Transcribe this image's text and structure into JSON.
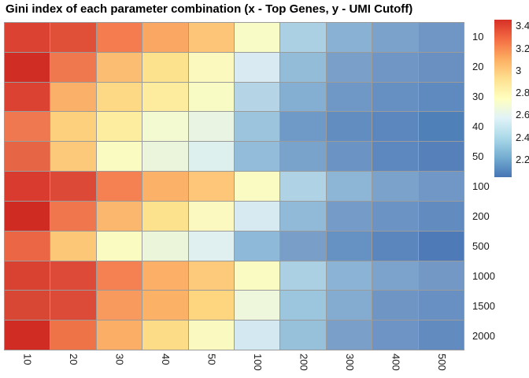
{
  "title": "Gini index of each parameter combination (x - Top Genes, y - UMI Cutoff)",
  "chart_data": {
    "type": "heatmap",
    "x_axis": {
      "name": "Top Genes",
      "categories": [
        "10",
        "20",
        "30",
        "40",
        "50",
        "100",
        "200",
        "300",
        "400",
        "500"
      ]
    },
    "y_axis": {
      "name": "UMI Cutoff",
      "categories": [
        "10",
        "20",
        "30",
        "40",
        "50",
        "100",
        "200",
        "500",
        "1000",
        "1500",
        "2000"
      ]
    },
    "colorbar": {
      "tick_labels": [
        "3.4",
        "3.2",
        "3",
        "2.8",
        "2.6",
        "2.4",
        "2.2"
      ],
      "tick_values": [
        3.4,
        3.2,
        3.0,
        2.8,
        2.6,
        2.4,
        2.2
      ],
      "max_value": 3.455,
      "min_value": 2.04,
      "gradient_colors": [
        "#d73027",
        "#f46d43",
        "#fdae61",
        "#fee090",
        "#ffffbf",
        "#e0f3f8",
        "#abd9e9",
        "#74add1",
        "#4575b4"
      ]
    },
    "grid_line_color": "#9b9b9b",
    "background": "#ffffff",
    "values_note": "Gini index per cell, estimated from cell color against the colorbar",
    "values": [
      [
        3.44,
        3.4,
        3.26,
        3.14,
        3.06,
        2.74,
        2.4,
        2.26,
        2.18,
        2.15
      ],
      [
        3.47,
        3.25,
        3.02,
        2.93,
        2.76,
        2.54,
        2.31,
        2.18,
        2.16,
        2.14
      ],
      [
        3.43,
        3.04,
        2.96,
        2.89,
        2.75,
        2.44,
        2.3,
        2.17,
        2.14,
        2.12
      ],
      [
        3.23,
        2.97,
        2.87,
        2.72,
        2.64,
        2.34,
        2.17,
        2.13,
        2.11,
        2.07
      ],
      [
        3.32,
        2.99,
        2.74,
        2.65,
        2.59,
        2.31,
        2.18,
        2.15,
        2.11,
        2.09
      ],
      [
        3.44,
        3.41,
        3.25,
        3.08,
        3.02,
        2.74,
        2.42,
        2.32,
        2.22,
        2.18
      ],
      [
        3.46,
        3.24,
        3.05,
        2.93,
        2.75,
        2.53,
        2.3,
        2.17,
        2.15,
        2.13
      ],
      [
        3.28,
        2.99,
        2.74,
        2.64,
        2.58,
        2.3,
        2.16,
        2.13,
        2.09,
        2.05
      ],
      [
        3.43,
        3.4,
        3.25,
        3.1,
        3.0,
        2.74,
        2.41,
        2.31,
        2.22,
        2.19
      ],
      [
        3.43,
        3.39,
        3.18,
        3.08,
        2.98,
        2.7,
        2.38,
        2.27,
        2.16,
        2.15
      ],
      [
        3.46,
        3.27,
        3.09,
        2.97,
        2.75,
        2.52,
        2.31,
        2.17,
        2.14,
        2.12
      ]
    ],
    "cell_colors": [
      [
        "#db4232",
        "#e05038",
        "#f47c4e",
        "#faa763",
        "#fdc577",
        "#f9fbc6",
        "#abd0e3",
        "#88b1d4",
        "#7aa2ca",
        "#6f96c5"
      ],
      [
        "#d02d24",
        "#f0784f",
        "#fbbd72",
        "#fde28e",
        "#fcf9bf",
        "#d9eaf2",
        "#93bcd9",
        "#7aa0c9",
        "#6f96c5",
        "#6a90c2"
      ],
      [
        "#dc4232",
        "#fbb069",
        "#fdd985",
        "#fdeb9e",
        "#f9fbc4",
        "#b5d5e7",
        "#85aed3",
        "#6f98c7",
        "#6690c2",
        "#5f8abf"
      ],
      [
        "#f07850",
        "#fdd07d",
        "#fdee9f",
        "#f3f9d0",
        "#e9f5e2",
        "#9cc4dd",
        "#6f9ac8",
        "#628dc1",
        "#5c87be",
        "#5080b8"
      ],
      [
        "#e66545",
        "#fcc97a",
        "#fafbc0",
        "#eaf5dc",
        "#def0ee",
        "#92bcd9",
        "#7aa3cb",
        "#6b94c5",
        "#5d88bf",
        "#5580ba"
      ],
      [
        "#d93c2e",
        "#dc4937",
        "#f58052",
        "#fbb168",
        "#fdc679",
        "#f9fbc2",
        "#b0d2e5",
        "#8cb5d6",
        "#7aa2ca",
        "#7197c6"
      ],
      [
        "#cf2b22",
        "#f0764d",
        "#fbb76e",
        "#fde28e",
        "#fbf9c0",
        "#d7e9f1",
        "#90bad8",
        "#759cc9",
        "#6b93c4",
        "#628cc0"
      ],
      [
        "#ea6644",
        "#fcc878",
        "#fafbc1",
        "#ebf5da",
        "#e0f0f0",
        "#8fb9d8",
        "#799fc9",
        "#6691c3",
        "#5b86bd",
        "#4e7bb7"
      ],
      [
        "#d94231",
        "#dd4a37",
        "#f58052",
        "#fbaf67",
        "#fdc97b",
        "#f9fbc3",
        "#acd0e3",
        "#8ab3d5",
        "#7ba3cb",
        "#7398c6"
      ],
      [
        "#d84634",
        "#dc4b38",
        "#f89a5e",
        "#fbb267",
        "#fdd67f",
        "#eef7dc",
        "#9cc5de",
        "#84abd0",
        "#6e95c4",
        "#6890c2"
      ],
      [
        "#d02c23",
        "#ee7448",
        "#fbaf66",
        "#fcdc86",
        "#fafac0",
        "#d3e8f1",
        "#97c0db",
        "#7aa0c9",
        "#6d94c4",
        "#628bc0"
      ]
    ]
  }
}
